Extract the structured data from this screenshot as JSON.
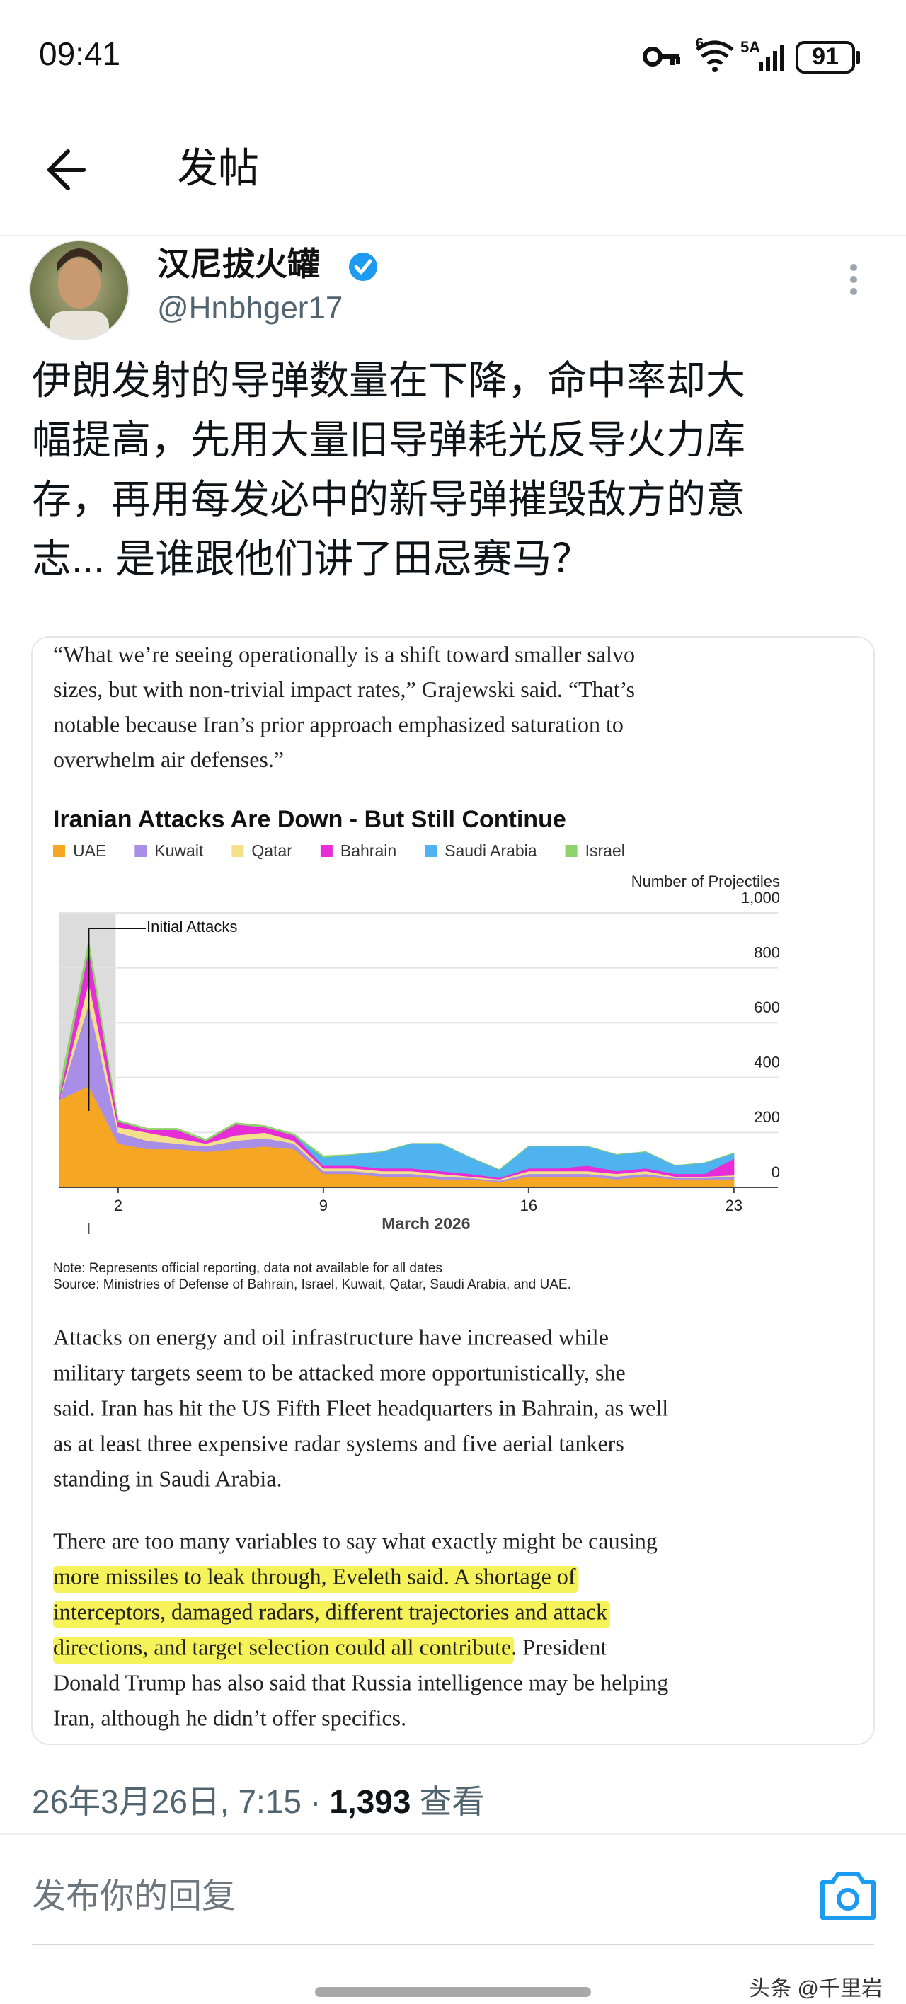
{
  "status_bar": {
    "time": "09:41",
    "wifi_label": "6",
    "signal_label": "5A",
    "battery": "91"
  },
  "header": {
    "title": "发帖"
  },
  "post": {
    "author": "汉尼拔火罐",
    "handle": "@Hnbhger17",
    "text_lines": [
      "伊朗发射的导弹数量在下降，命中率却大",
      "幅提高，先用大量旧导弹耗光反导火力库",
      "存，再用每发必中的新导弹摧毁敌方的意",
      "志... 是谁跟他们讲了田忌赛马？"
    ],
    "article": {
      "quote_lines": [
        "“What we’re seeing operationally is a shift toward smaller salvo",
        "sizes, but with non-trivial impact rates,” Grajewski said. “That’s",
        "notable because Iran’s prior approach emphasized saturation to",
        "overwhelm air defenses.”"
      ],
      "chart_data": {
        "type": "area",
        "stacked": true,
        "title": "Iranian Attacks Are Down - But Still Continue",
        "y_axis_label": "Number of Projectiles",
        "x_axis_label": "March 2026",
        "annotation": "Initial Attacks",
        "x": [
          0,
          1,
          2,
          3,
          4,
          5,
          6,
          7,
          8,
          9,
          10,
          11,
          12,
          13,
          14,
          15,
          16,
          17,
          18,
          19,
          20,
          21,
          22,
          23
        ],
        "xlim": [
          0,
          24.5
        ],
        "xticks": [
          2,
          9,
          16,
          23
        ],
        "ylim": [
          0,
          1000
        ],
        "yticks": [
          0,
          200,
          400,
          600,
          800,
          {
            "value": 1000,
            "label": "1,000"
          }
        ],
        "grid": true,
        "series": [
          {
            "name": "UAE",
            "color": "#f5a623",
            "values": [
              320,
              370,
              160,
              140,
              140,
              130,
              140,
              150,
              140,
              50,
              50,
              40,
              40,
              30,
              30,
              20,
              40,
              40,
              40,
              30,
              40,
              30,
              30,
              30
            ]
          },
          {
            "name": "Kuwait",
            "color": "#a98ee8",
            "values": [
              0,
              300,
              40,
              30,
              20,
              20,
              30,
              30,
              20,
              10,
              10,
              10,
              10,
              10,
              5,
              5,
              10,
              10,
              10,
              10,
              10,
              5,
              5,
              10
            ]
          },
          {
            "name": "Qatar",
            "color": "#f4e08a",
            "values": [
              0,
              80,
              20,
              30,
              20,
              10,
              20,
              20,
              10,
              10,
              10,
              10,
              10,
              10,
              5,
              5,
              10,
              10,
              10,
              10,
              10,
              5,
              5,
              5
            ]
          },
          {
            "name": "Bahrain",
            "color": "#e62dd8",
            "values": [
              10,
              120,
              20,
              10,
              30,
              10,
              40,
              20,
              20,
              10,
              10,
              10,
              10,
              10,
              10,
              5,
              10,
              10,
              20,
              10,
              10,
              10,
              10,
              60
            ]
          },
          {
            "name": "Saudi Arabia",
            "color": "#4fb3f0",
            "values": [
              0,
              0,
              0,
              0,
              0,
              0,
              0,
              0,
              0,
              30,
              40,
              60,
              90,
              100,
              60,
              30,
              80,
              80,
              70,
              60,
              60,
              30,
              40,
              20
            ]
          },
          {
            "name": "Israel",
            "color": "#8fd16a",
            "values": [
              30,
              30,
              5,
              5,
              5,
              5,
              5,
              5,
              5,
              5,
              0,
              0,
              0,
              0,
              0,
              0,
              0,
              0,
              0,
              0,
              0,
              0,
              0,
              0
            ]
          }
        ]
      },
      "note": "Note: Represents official reporting, data not available for all dates",
      "source": "Source: Ministries of Defense of Bahrain, Israel, Kuwait, Qatar, Saudi Arabia, and UAE.",
      "paragraph_1": [
        "Attacks on energy and oil infrastructure have increased while",
        "military targets seem to be attacked more opportunistically, she",
        "said. Iran has hit the US Fifth Fleet headquarters in Bahrain, as well",
        "as at least three expensive radar systems and five aerial tankers",
        "standing in Saudi Arabia."
      ],
      "paragraph_2": [
        [
          {
            "text": "There are too many variables to say what exactly might be causing",
            "highlight": false
          }
        ],
        [
          {
            "text": "more missiles to leak through, Eveleth said. A shortage of",
            "highlight": true
          }
        ],
        [
          {
            "text": "interceptors, damaged radars, different trajectories and attack",
            "highlight": true
          }
        ],
        [
          {
            "text": "directions, and target selection could all contribute",
            "highlight": true
          },
          {
            "text": ". President",
            "highlight": false
          }
        ],
        [
          {
            "text": "Donald Trump has also said that Russia intelligence may be helping",
            "highlight": false
          }
        ],
        [
          {
            "text": "Iran, although he didn’t offer specifics.",
            "highlight": false
          }
        ]
      ]
    },
    "date": "26年3月26日, 7:15",
    "separator": "·",
    "views": "1,393",
    "views_label": "查看"
  },
  "reply": {
    "placeholder": "发布你的回复"
  },
  "watermark": "头条 @千里岩"
}
